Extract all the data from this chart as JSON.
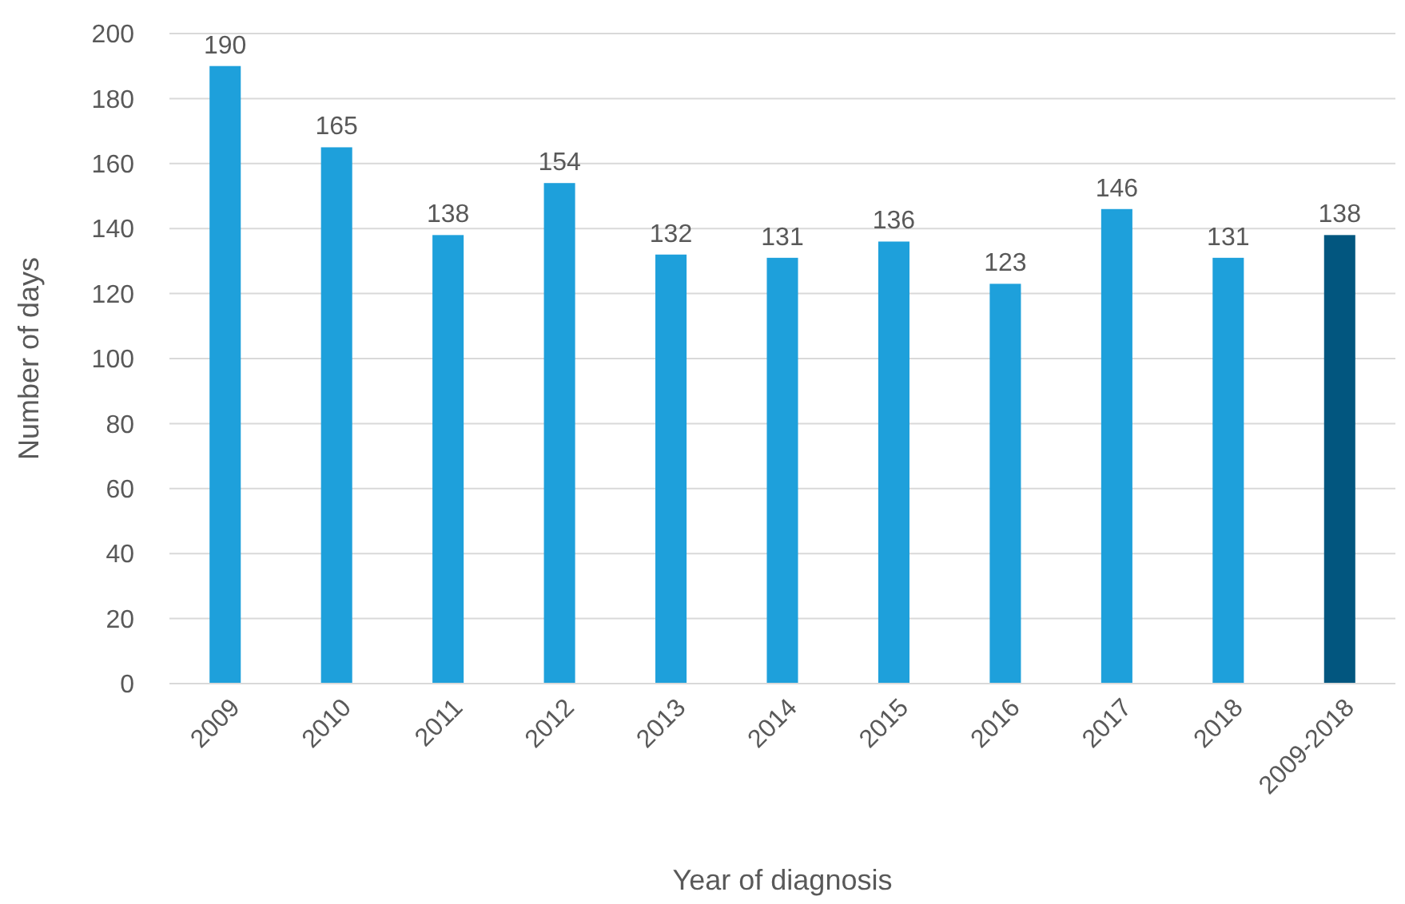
{
  "chart_data": {
    "type": "bar",
    "xlabel": "Year of diagnosis",
    "ylabel": "Number of days",
    "categories": [
      "2009",
      "2010",
      "2011",
      "2012",
      "2013",
      "2014",
      "2015",
      "2016",
      "2017",
      "2018",
      "2009-2018"
    ],
    "values": [
      190,
      165,
      138,
      154,
      132,
      131,
      136,
      123,
      146,
      131,
      138
    ],
    "colors": [
      "#1ea0db",
      "#1ea0db",
      "#1ea0db",
      "#1ea0db",
      "#1ea0db",
      "#1ea0db",
      "#1ea0db",
      "#1ea0db",
      "#1ea0db",
      "#1ea0db",
      "#02567f"
    ],
    "ylim": [
      0,
      200
    ],
    "yticks": [
      0,
      20,
      40,
      60,
      80,
      100,
      120,
      140,
      160,
      180,
      200
    ],
    "grid": "y",
    "data_labels": true
  }
}
